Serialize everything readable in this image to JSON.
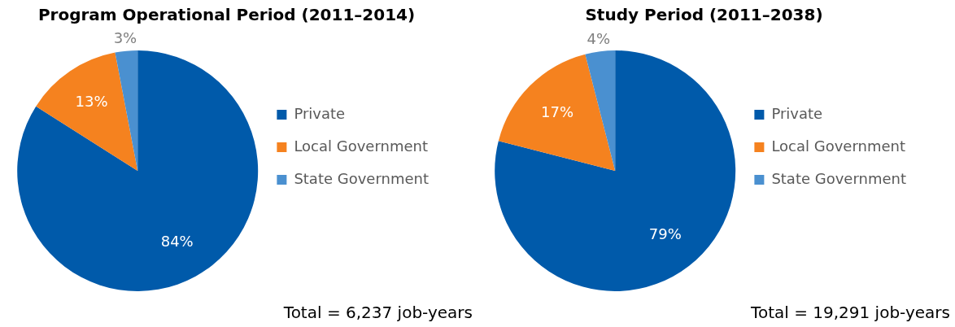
{
  "chart_data": [
    {
      "type": "pie",
      "title": "Program Operational Period (2011–2014)",
      "categories": [
        "Private",
        "Local Government",
        "State Government"
      ],
      "values": [
        84,
        13,
        3
      ],
      "value_labels": [
        "84%",
        "13%",
        "3%"
      ],
      "colors": [
        "#005aaa",
        "#f5821f",
        "#4a90d0"
      ],
      "legend": "right",
      "annotations": [
        "Total = 6,237 job-years"
      ]
    },
    {
      "type": "pie",
      "title": "Study Period (2011–2038)",
      "categories": [
        "Private",
        "Local Government",
        "State Government"
      ],
      "values": [
        79,
        17,
        4
      ],
      "value_labels": [
        "79%",
        "17%",
        "4%"
      ],
      "colors": [
        "#005aaa",
        "#f5821f",
        "#4a90d0"
      ],
      "legend": "right",
      "annotations": [
        "Total = 19,291 job-years"
      ]
    }
  ]
}
